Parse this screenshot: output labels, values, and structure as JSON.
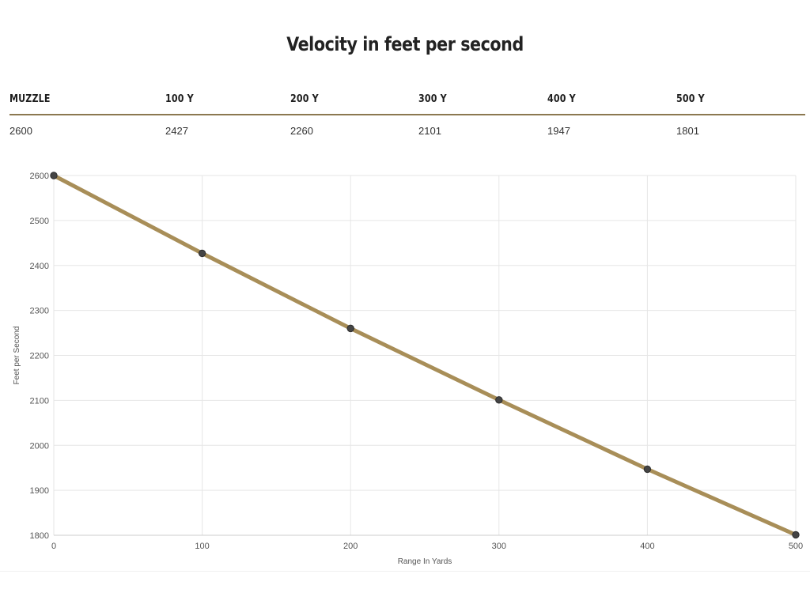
{
  "title": "Velocity in feet per second",
  "table": {
    "headers": [
      "MUZZLE",
      "100 Y",
      "200 Y",
      "300 Y",
      "400 Y",
      "500 Y"
    ],
    "values": [
      "2600",
      "2427",
      "2260",
      "2101",
      "1947",
      "1801"
    ]
  },
  "colors": {
    "line": "#a88e58",
    "marker": "#444444",
    "rule": "#8b7850",
    "grid": "#e6e6e6"
  },
  "chart_data": {
    "type": "line",
    "title": "",
    "xlabel": "Range In Yards",
    "ylabel": "Feet per Second",
    "x": [
      0,
      100,
      200,
      300,
      400,
      500
    ],
    "series": [
      {
        "values": [
          2600,
          2427,
          2260,
          2101,
          1947,
          1801
        ]
      }
    ],
    "xlim": [
      0,
      500
    ],
    "ylim": [
      1800,
      2600
    ],
    "xticks": [
      0,
      100,
      200,
      300,
      400,
      500
    ],
    "yticks": [
      1800,
      1900,
      2000,
      2100,
      2200,
      2300,
      2400,
      2500,
      2600
    ],
    "grid": true,
    "legend": "none"
  }
}
